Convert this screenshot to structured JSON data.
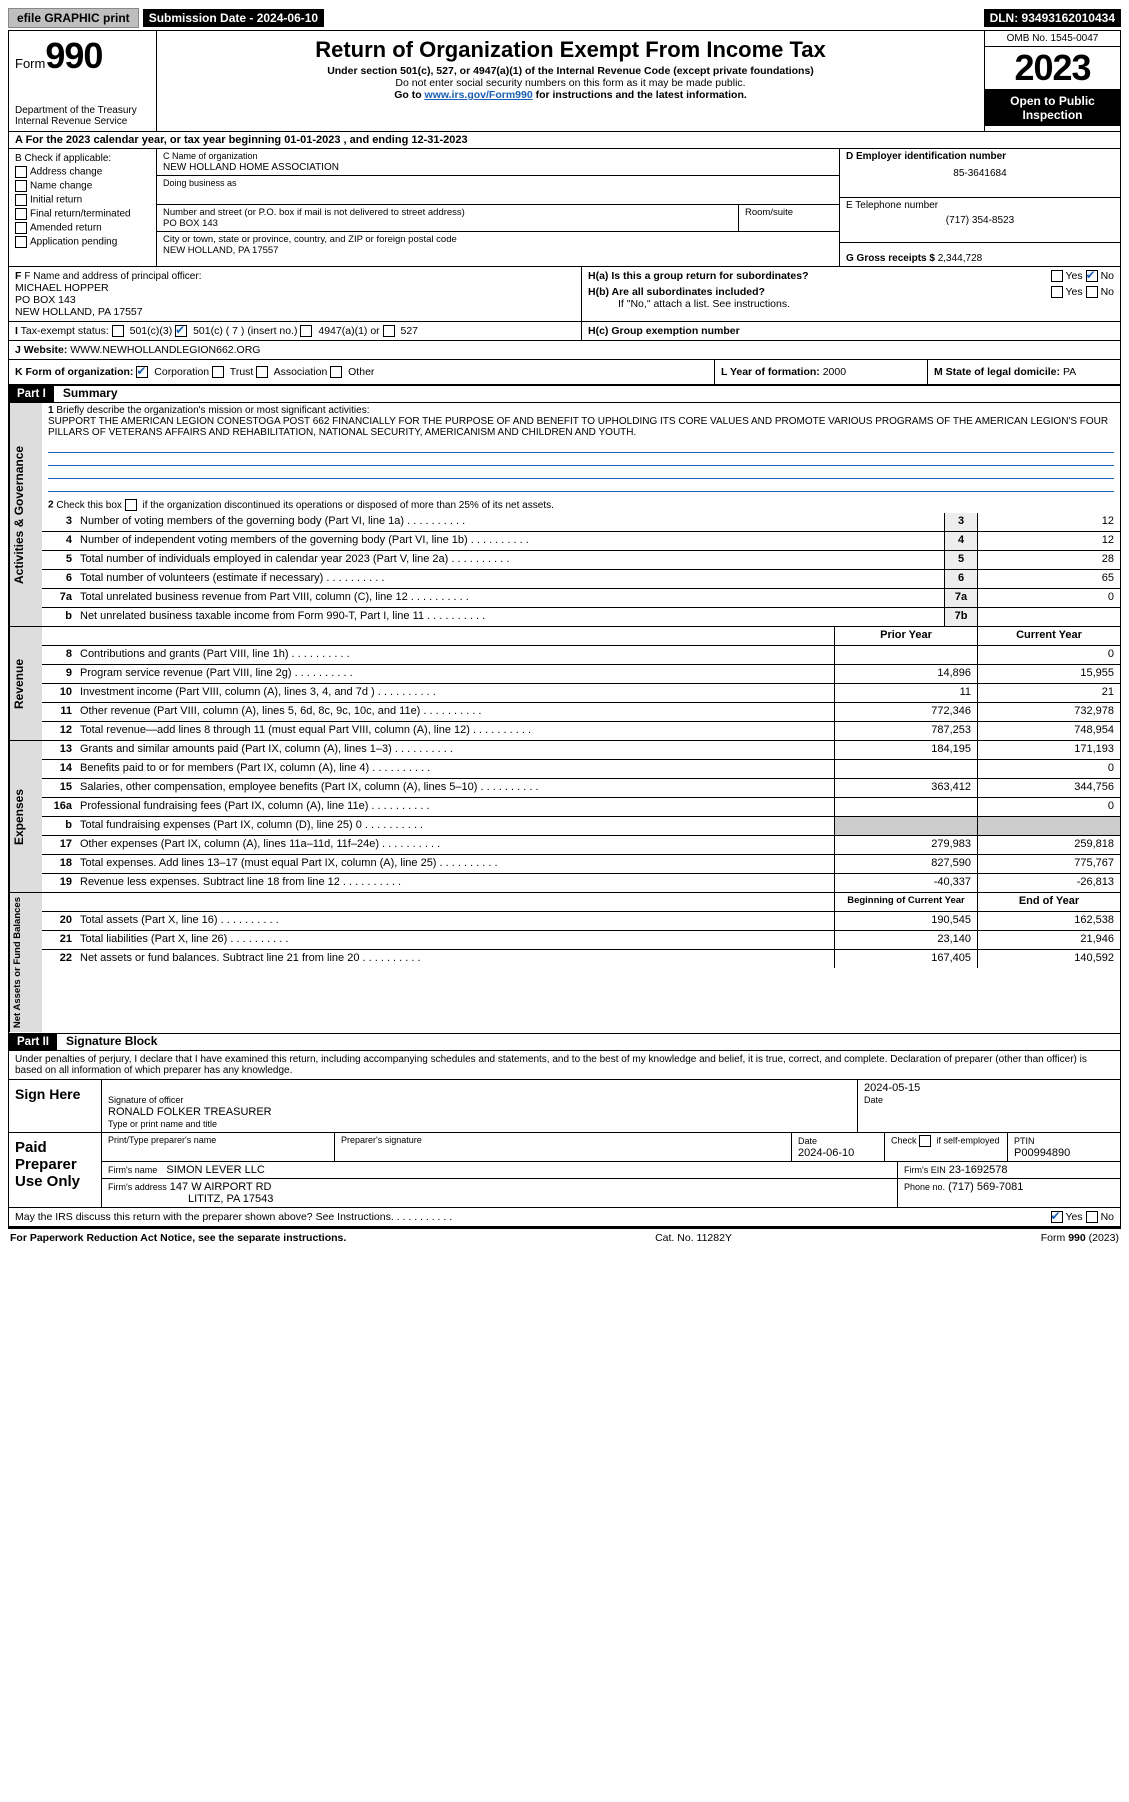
{
  "top": {
    "efile": "efile GRAPHIC print",
    "submission_label": "Submission Date - 2024-06-10",
    "dln": "DLN: 93493162010434"
  },
  "header": {
    "form_prefix": "Form",
    "form_no": "990",
    "dept": "Department of the Treasury",
    "irs": "Internal Revenue Service",
    "title": "Return of Organization Exempt From Income Tax",
    "sub1": "Under section 501(c), 527, or 4947(a)(1) of the Internal Revenue Code (except private foundations)",
    "sub2": "Do not enter social security numbers on this form as it may be made public.",
    "sub3_pre": "Go to ",
    "sub3_link": "www.irs.gov/Form990",
    "sub3_post": " for instructions and the latest information.",
    "omb": "OMB No. 1545-0047",
    "year": "2023",
    "open": "Open to Public Inspection"
  },
  "rowA": "A For the 2023 calendar year, or tax year beginning 01-01-2023   , and ending 12-31-2023",
  "checkB": {
    "label": "B Check if applicable:",
    "items": [
      "Address change",
      "Name change",
      "Initial return",
      "Final return/terminated",
      "Amended return",
      "Application pending"
    ]
  },
  "org": {
    "name_label": "C Name of organization",
    "name": "NEW HOLLAND HOME ASSOCIATION",
    "dba_label": "Doing business as",
    "addr_label": "Number and street (or P.O. box if mail is not delivered to street address)",
    "room_label": "Room/suite",
    "addr": "PO BOX 143",
    "city_label": "City or town, state or province, country, and ZIP or foreign postal code",
    "city": "NEW HOLLAND, PA  17557"
  },
  "right": {
    "ein_label": "D Employer identification number",
    "ein": "85-3641684",
    "phone_label": "E Telephone number",
    "phone": "(717) 354-8523",
    "gross_label": "G Gross receipts $",
    "gross": "2,344,728"
  },
  "fhi": {
    "f_label": "F Name and address of principal officer:",
    "f_name": "MICHAEL HOPPER",
    "f_addr1": "PO BOX 143",
    "f_addr2": "NEW HOLLAND, PA  17557",
    "i_label": "Tax-exempt status:",
    "i_501c3": "501(c)(3)",
    "i_501c": "501(c) ( 7 ) (insert no.)",
    "i_4947": "4947(a)(1) or",
    "i_527": "527",
    "j_label": "Website:",
    "j_val": "WWW.NEWHOLLANDLEGION662.ORG",
    "ha": "H(a)  Is this a group return for subordinates?",
    "hb": "H(b)  Are all subordinates included?",
    "hb_note": "If \"No,\" attach a list. See instructions.",
    "hc": "H(c)  Group exemption number",
    "yes": "Yes",
    "no": "No"
  },
  "rowK": {
    "k_label": "K Form of organization:",
    "opts": [
      "Corporation",
      "Trust",
      "Association",
      "Other"
    ],
    "l_label": "L Year of formation:",
    "l_val": "2000",
    "m_label": "M State of legal domicile:",
    "m_val": "PA"
  },
  "part1": {
    "hdr": "Part I",
    "title": "Summary",
    "q1": "Briefly describe the organization's mission or most significant activities:",
    "mission": "SUPPORT THE AMERICAN LEGION CONESTOGA POST 662 FINANCIALLY FOR THE PURPOSE OF AND BENEFIT TO UPHOLDING ITS CORE VALUES AND PROMOTE VARIOUS PROGRAMS OF THE AMERICAN LEGION'S FOUR PILLARS OF VETERANS AFFAIRS AND REHABILITATION, NATIONAL SECURITY, AMERICANISM AND CHILDREN AND YOUTH.",
    "q2": "Check this box        if the organization discontinued its operations or disposed of more than 25% of its net assets."
  },
  "gov": {
    "side": "Activities & Governance",
    "rows": [
      {
        "n": "3",
        "t": "Number of voting members of the governing body (Part VI, line 1a)",
        "b": "3",
        "v": "12"
      },
      {
        "n": "4",
        "t": "Number of independent voting members of the governing body (Part VI, line 1b)",
        "b": "4",
        "v": "12"
      },
      {
        "n": "5",
        "t": "Total number of individuals employed in calendar year 2023 (Part V, line 2a)",
        "b": "5",
        "v": "28"
      },
      {
        "n": "6",
        "t": "Total number of volunteers (estimate if necessary)",
        "b": "6",
        "v": "65"
      },
      {
        "n": "7a",
        "t": "Total unrelated business revenue from Part VIII, column (C), line 12",
        "b": "7a",
        "v": "0"
      },
      {
        "n": "b",
        "t": "Net unrelated business taxable income from Form 990-T, Part I, line 11",
        "b": "7b",
        "v": ""
      }
    ]
  },
  "rev": {
    "side": "Revenue",
    "hdr_prior": "Prior Year",
    "hdr_curr": "Current Year",
    "rows": [
      {
        "n": "8",
        "t": "Contributions and grants (Part VIII, line 1h)",
        "p": "",
        "c": "0"
      },
      {
        "n": "9",
        "t": "Program service revenue (Part VIII, line 2g)",
        "p": "14,896",
        "c": "15,955"
      },
      {
        "n": "10",
        "t": "Investment income (Part VIII, column (A), lines 3, 4, and 7d )",
        "p": "11",
        "c": "21"
      },
      {
        "n": "11",
        "t": "Other revenue (Part VIII, column (A), lines 5, 6d, 8c, 9c, 10c, and 11e)",
        "p": "772,346",
        "c": "732,978"
      },
      {
        "n": "12",
        "t": "Total revenue—add lines 8 through 11 (must equal Part VIII, column (A), line 12)",
        "p": "787,253",
        "c": "748,954"
      }
    ]
  },
  "exp": {
    "side": "Expenses",
    "rows": [
      {
        "n": "13",
        "t": "Grants and similar amounts paid (Part IX, column (A), lines 1–3)",
        "p": "184,195",
        "c": "171,193"
      },
      {
        "n": "14",
        "t": "Benefits paid to or for members (Part IX, column (A), line 4)",
        "p": "",
        "c": "0"
      },
      {
        "n": "15",
        "t": "Salaries, other compensation, employee benefits (Part IX, column (A), lines 5–10)",
        "p": "363,412",
        "c": "344,756"
      },
      {
        "n": "16a",
        "t": "Professional fundraising fees (Part IX, column (A), line 11e)",
        "p": "",
        "c": "0"
      },
      {
        "n": "b",
        "t": "Total fundraising expenses (Part IX, column (D), line 25) 0",
        "p": "__shade__",
        "c": "__shade__"
      },
      {
        "n": "17",
        "t": "Other expenses (Part IX, column (A), lines 11a–11d, 11f–24e)",
        "p": "279,983",
        "c": "259,818"
      },
      {
        "n": "18",
        "t": "Total expenses. Add lines 13–17 (must equal Part IX, column (A), line 25)",
        "p": "827,590",
        "c": "775,767"
      },
      {
        "n": "19",
        "t": "Revenue less expenses. Subtract line 18 from line 12",
        "p": "-40,337",
        "c": "-26,813"
      }
    ]
  },
  "net": {
    "side": "Net Assets or Fund Balances",
    "hdr_begin": "Beginning of Current Year",
    "hdr_end": "End of Year",
    "rows": [
      {
        "n": "20",
        "t": "Total assets (Part X, line 16)",
        "p": "190,545",
        "c": "162,538"
      },
      {
        "n": "21",
        "t": "Total liabilities (Part X, line 26)",
        "p": "23,140",
        "c": "21,946"
      },
      {
        "n": "22",
        "t": "Net assets or fund balances. Subtract line 21 from line 20",
        "p": "167,405",
        "c": "140,592"
      }
    ]
  },
  "part2": {
    "hdr": "Part II",
    "title": "Signature Block",
    "decl": "Under penalties of perjury, I declare that I have examined this return, including accompanying schedules and statements, and to the best of my knowledge and belief, it is true, correct, and complete. Declaration of preparer (other than officer) is based on all information of which preparer has any knowledge."
  },
  "sign": {
    "here": "Sign Here",
    "sig_label": "Signature of officer",
    "name": "RONALD FOLKER  TREASURER",
    "type_label": "Type or print name and title",
    "date_label": "Date",
    "date": "2024-05-15"
  },
  "paid": {
    "label": "Paid Preparer Use Only",
    "p1": "Print/Type preparer's name",
    "p2": "Preparer's signature",
    "p3_label": "Date",
    "p3": "2024-06-10",
    "p4_label": "Check        if self-employed",
    "ptin_label": "PTIN",
    "ptin": "P00994890",
    "firm_label": "Firm's name",
    "firm": "SIMON LEVER LLC",
    "ein_label": "Firm's EIN",
    "ein": "23-1692578",
    "addr_label": "Firm's address",
    "addr1": "147 W AIRPORT RD",
    "addr2": "LITITZ, PA  17543",
    "phone_label": "Phone no.",
    "phone": "(717) 569-7081"
  },
  "discuss": "May the IRS discuss this return with the preparer shown above? See Instructions.",
  "footer": {
    "left": "For Paperwork Reduction Act Notice, see the separate instructions.",
    "mid": "Cat. No. 11282Y",
    "right": "Form 990 (2023)"
  }
}
